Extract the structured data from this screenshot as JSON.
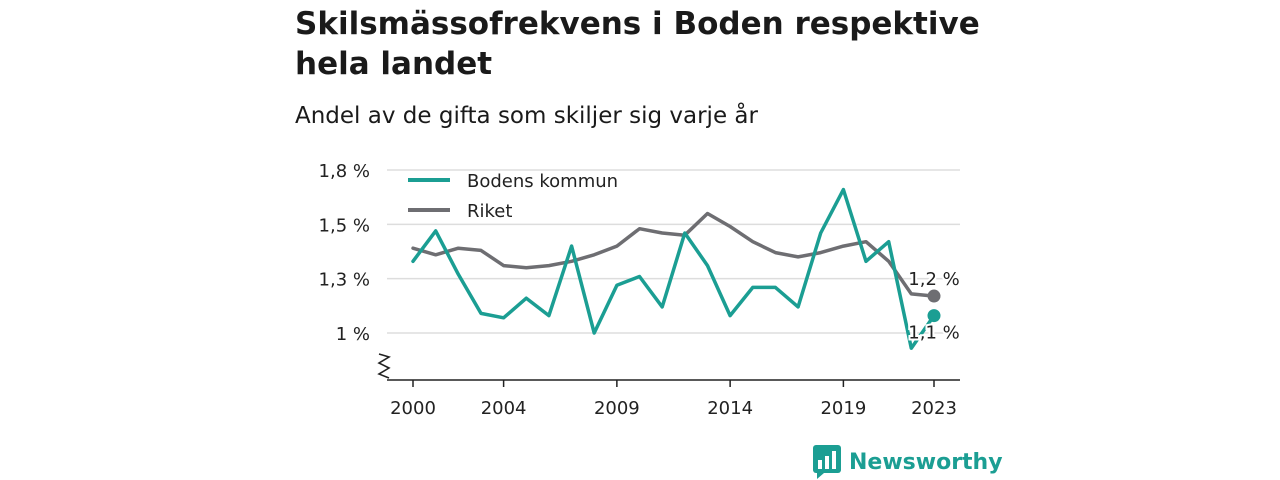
{
  "title": "Skilsmässofrekvens i Boden respektive hela landet",
  "subtitle": "Andel av de gifta som skiljer sig varje år",
  "brand": {
    "name": "Newsworthy",
    "logo_icon": "newsworthy-bar-chart-logo-icon"
  },
  "colors": {
    "bodens": "#1b9e93",
    "riket": "#6e6e72",
    "grid": "#dddddd",
    "axis": "#222222"
  },
  "chart_data": {
    "type": "line",
    "title": "Skilsmässofrekvens i Boden respektive hela landet",
    "subtitle": "Andel av de gifta som skiljer sig varje år",
    "xlabel": "",
    "ylabel": "",
    "x": [
      2000,
      2001,
      2002,
      2003,
      2004,
      2005,
      2006,
      2007,
      2008,
      2009,
      2010,
      2011,
      2012,
      2013,
      2014,
      2015,
      2016,
      2017,
      2018,
      2019,
      2020,
      2021,
      2022,
      2023
    ],
    "xlim": [
      2000,
      2023
    ],
    "ylim": [
      0.85,
      1.8
    ],
    "axis_break": true,
    "grid": true,
    "legend": "top-left",
    "x_ticks": [
      {
        "value": 2000,
        "label": "2000"
      },
      {
        "value": 2004,
        "label": "2004"
      },
      {
        "value": 2009,
        "label": "2009"
      },
      {
        "value": 2014,
        "label": "2014"
      },
      {
        "value": 2019,
        "label": "2019"
      },
      {
        "value": 2023,
        "label": "2023"
      }
    ],
    "y_ticks": [
      {
        "value": 1.0,
        "label": "1 %"
      },
      {
        "value": 1.25,
        "label": "1,3 %"
      },
      {
        "value": 1.5,
        "label": "1,5 %"
      },
      {
        "value": 1.75,
        "label": "1,8 %"
      }
    ],
    "series": [
      {
        "name": "Bodens kommun",
        "color": "#1b9e93",
        "values": [
          1.33,
          1.47,
          1.27,
          1.09,
          1.07,
          1.16,
          1.08,
          1.4,
          1.0,
          1.22,
          1.26,
          1.12,
          1.46,
          1.31,
          1.08,
          1.21,
          1.21,
          1.12,
          1.46,
          1.66,
          1.33,
          1.42,
          0.93,
          1.08
        ],
        "end_label": "1,1 %"
      },
      {
        "name": "Riket",
        "color": "#6e6e72",
        "values": [
          1.39,
          1.36,
          1.39,
          1.38,
          1.31,
          1.3,
          1.31,
          1.33,
          1.36,
          1.4,
          1.48,
          1.46,
          1.45,
          1.55,
          1.49,
          1.42,
          1.37,
          1.35,
          1.37,
          1.4,
          1.42,
          1.33,
          1.18,
          1.17
        ],
        "end_label": "1,2 %"
      }
    ]
  }
}
